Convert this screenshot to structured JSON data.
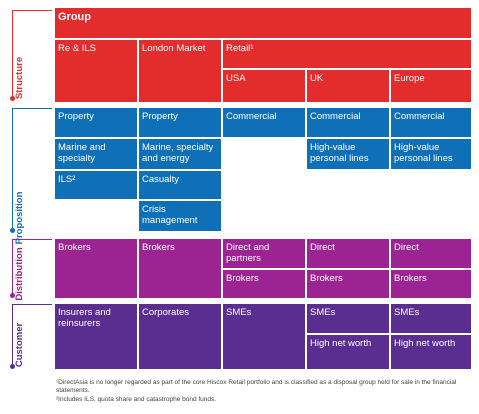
{
  "colors": {
    "structure": "#e32c2c",
    "proposition": "#0f6fb7",
    "distribution": "#9c2492",
    "customer": "#5a2d91"
  },
  "sections": {
    "structure": "Structure",
    "proposition": "Proposition",
    "distribution": "Distribution",
    "customer": "Customer"
  },
  "structure": {
    "group": "Group",
    "re_ils": "Re & ILS",
    "london_market": "London Market",
    "retail": "Retail¹",
    "usa": "USA",
    "uk": "UK",
    "europe": "Europe"
  },
  "proposition": {
    "re_property": "Property",
    "re_marine": "Marine and specialty",
    "re_ils": "ILS²",
    "lm_property": "Property",
    "lm_marine": "Marine, specialty and energy",
    "lm_casualty": "Casualty",
    "lm_crisis": "Crisis management",
    "usa_commercial": "Commercial",
    "uk_commercial": "Commercial",
    "uk_hv": "High-value personal lines",
    "eu_commercial": "Commercial",
    "eu_hv": "High-value personal lines"
  },
  "distribution": {
    "re_brokers": "Brokers",
    "lm_brokers": "Brokers",
    "usa_direct": "Direct and partners",
    "usa_brokers": "Brokers",
    "uk_direct": "Direct",
    "uk_brokers": "Brokers",
    "eu_direct": "Direct",
    "eu_brokers": "Brokers"
  },
  "customer": {
    "re": "Insurers and reinsurers",
    "lm": "Corporates",
    "usa": "SMEs",
    "uk_smes": "SMEs",
    "uk_hnw": "High net worth",
    "eu_smes": "SMEs",
    "eu_hnw": "High net worth"
  },
  "footnotes": {
    "note1": "¹DirectAsia is no longer regarded as part of the core Hiscox Retail portfolio and is classified as a disposal group held for sale in the financial statements.",
    "note2": "²Includes ILS, quota share and catastrophe bond funds."
  }
}
